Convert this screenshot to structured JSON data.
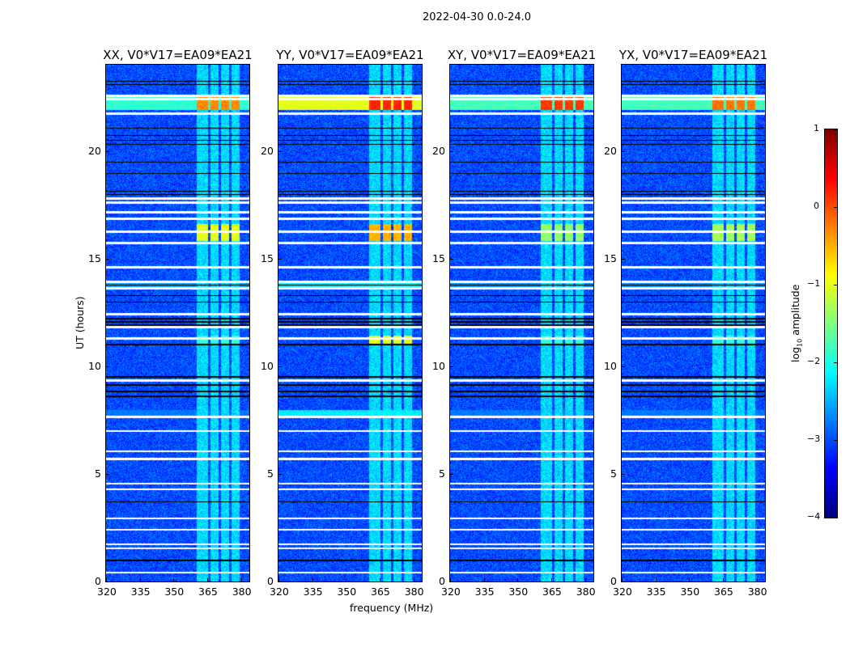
{
  "chart_data": {
    "type": "heatmap",
    "suptitle": "2022-04-30 0.0-24.0",
    "xlabel": "frequency (MHz)",
    "ylabel": "UT (hours)",
    "xlim": [
      320,
      383.7
    ],
    "ylim": [
      0,
      24
    ],
    "xticks": [
      "320",
      "335",
      "350",
      "365",
      "380"
    ],
    "xtick_values": [
      320,
      335,
      350,
      365,
      380
    ],
    "yticks": [
      "0",
      "5",
      "10",
      "15",
      "20"
    ],
    "ytick_values": [
      0,
      5,
      10,
      15,
      20
    ],
    "panels": [
      {
        "title": "XX, V0*V17=EA09*EA21",
        "pol": "XX",
        "event_22h": -0.3,
        "event_16h": -1.0,
        "event_11h": -1.9,
        "wideband_22h": -1.9,
        "wideband_13_7h": -2.6,
        "wideband_7_7h": -2.8
      },
      {
        "title": "YY, V0*V17=EA09*EA21",
        "pol": "YY",
        "event_22h": 0.2,
        "event_16h": -0.5,
        "event_11h": -1.0,
        "wideband_22h": -1.0,
        "wideband_13_7h": -2.2,
        "wideband_7_7h": -2.2
      },
      {
        "title": "XY, V0*V17=EA09*EA21",
        "pol": "XY",
        "event_22h": 0.1,
        "event_16h": -1.4,
        "event_11h": -1.9,
        "wideband_22h": -1.8,
        "wideband_13_7h": -2.7,
        "wideband_7_7h": -2.8
      },
      {
        "title": "YX, V0*V17=EA09*EA21",
        "pol": "YX",
        "event_22h": -0.2,
        "event_16h": -1.3,
        "event_11h": -1.9,
        "wideband_22h": -1.8,
        "wideband_13_7h": -2.7,
        "wideband_7_7h": -2.8
      }
    ],
    "background_log10_amp": -3.0,
    "rfi_channels_mhz": [
      [
        360.3,
        365.3
      ],
      [
        366.4,
        370.0
      ],
      [
        371.0,
        374.7
      ],
      [
        375.7,
        379.3
      ]
    ],
    "rfi_level": -2.3,
    "flagged_times_h": [
      22.55,
      22.4,
      21.73,
      17.79,
      17.6,
      17.15,
      16.85,
      16.25,
      15.72,
      14.6,
      13.92,
      13.62,
      12.42,
      11.82,
      11.29,
      9.34,
      7.65,
      6.98,
      6.04,
      5.7,
      4.54,
      4.28,
      2.93,
      2.4,
      1.73,
      1.54,
      0.41
    ],
    "gap_times_h": [
      23.23,
      23.08,
      21.05,
      20.71,
      20.49,
      20.3,
      19.47,
      18.95,
      18.12,
      17.97,
      13.77,
      13.28,
      12.98,
      12.2,
      12.05,
      11.9,
      11.0,
      9.5,
      9.12,
      8.82,
      8.6,
      3.71,
      0.98
    ],
    "colorbar": {
      "label": "log10 amplitude",
      "label_main": "log",
      "label_sub": "10",
      "label_rest": " amplitude",
      "range": [
        -4,
        1
      ],
      "ticks": [
        "1",
        "0",
        "−1",
        "−2",
        "−3",
        "−4"
      ],
      "tick_values": [
        1,
        0,
        -1,
        -2,
        -3,
        -4
      ],
      "colormap": "jet"
    }
  }
}
